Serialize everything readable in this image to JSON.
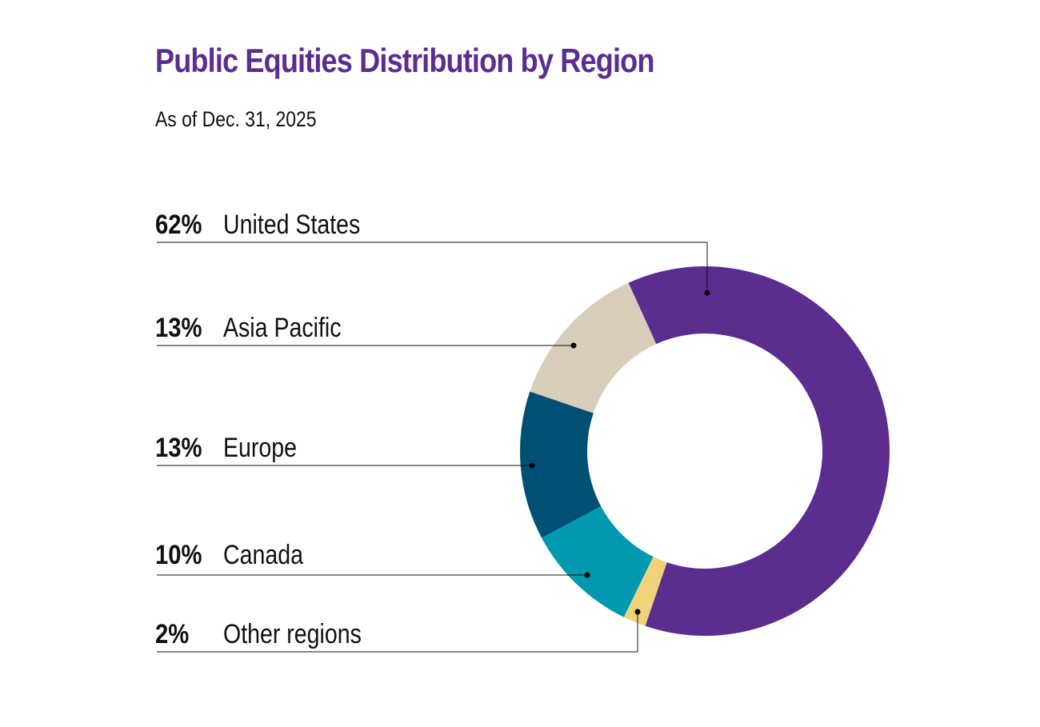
{
  "chart_data": {
    "type": "pie",
    "variant": "donut",
    "title": "Public Equities Distribution by Region",
    "subtitle": "As of Dec. 31, 2025",
    "slices": [
      {
        "label": "United States",
        "value": 62,
        "value_label": "62%",
        "color": "#5b2d8e"
      },
      {
        "label": "Other regions",
        "value": 2,
        "value_label": "2%",
        "color": "#f0d27a"
      },
      {
        "label": "Canada",
        "value": 10,
        "value_label": "10%",
        "color": "#0099b0"
      },
      {
        "label": "Europe",
        "value": 13,
        "value_label": "13%",
        "color": "#004f74"
      },
      {
        "label": "Asia Pacific",
        "value": 13,
        "value_label": "13%",
        "color": "#d8cdb9"
      }
    ],
    "legend_order": [
      "United States",
      "Asia Pacific",
      "Europe",
      "Canada",
      "Other regions"
    ]
  }
}
